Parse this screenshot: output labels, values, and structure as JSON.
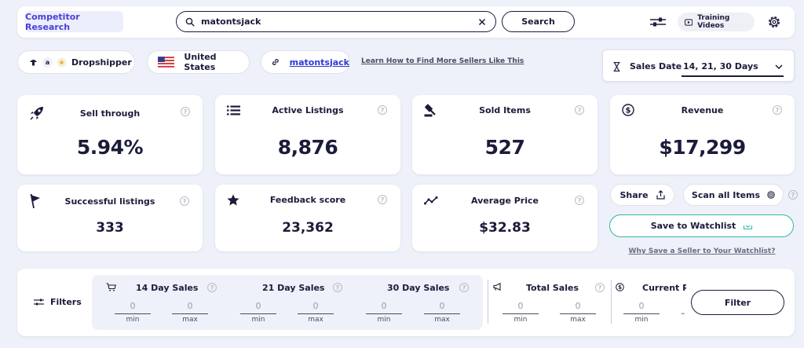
{
  "header": {
    "tab_label": "Competitor Research",
    "search_value": "matontsjack",
    "search_button": "Search",
    "training_videos": "Training Videos"
  },
  "subheader": {
    "platform_label": "Dropshipper",
    "country_label": "United States",
    "seller_link": "matontsjack",
    "learn_link": "Learn How to Find More Sellers Like This",
    "sales_date_label": "Sales Date",
    "sales_date_value": "14, 21, 30 Days"
  },
  "stats": {
    "sell_through": {
      "label": "Sell through",
      "value": "5.94%"
    },
    "active_listings": {
      "label": "Active Listings",
      "value": "8,876"
    },
    "sold_items": {
      "label": "Sold Items",
      "value": "527"
    },
    "revenue": {
      "label": "Revenue",
      "value": "$17,299"
    },
    "successful_listings": {
      "label": "Successful listings",
      "value": "333"
    },
    "feedback_score": {
      "label": "Feedback score",
      "value": "23,362"
    },
    "average_price": {
      "label": "Average Price",
      "value": "$32.83"
    }
  },
  "actions": {
    "share": "Share",
    "scan_all": "Scan all Items",
    "save_watchlist": "Save to Watchlist",
    "why_save": "Why Save a Seller to Your Watchlist?"
  },
  "filters": {
    "label": "Filters",
    "day14": "14 Day Sales",
    "day21": "21 Day Sales",
    "day30": "30 Day Sales",
    "total_sales": "Total Sales",
    "current_price": "Current Pr",
    "min_label": "min",
    "max_label": "max",
    "zero": "0",
    "dash": "–",
    "filter_button": "Filter"
  },
  "icons": {
    "help": "?",
    "amazon": "a"
  },
  "colors": {
    "accent_purple": "#4b3fd6",
    "watchlist_green": "#2fb8a2",
    "link_blue": "#2a3ad6"
  }
}
